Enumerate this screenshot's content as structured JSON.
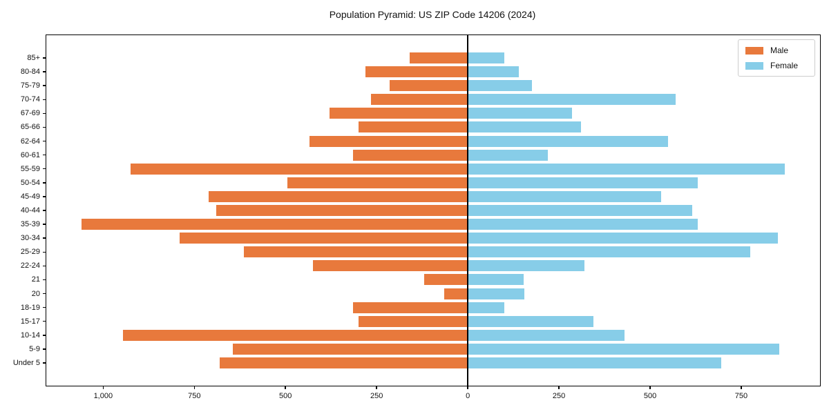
{
  "chart_data": {
    "type": "bar",
    "subtype": "population-pyramid",
    "title": "Population Pyramid: US ZIP Code 14206 (2024)",
    "categories_top_to_bottom": [
      "85+",
      "80-84",
      "75-79",
      "70-74",
      "67-69",
      "65-66",
      "62-64",
      "60-61",
      "55-59",
      "50-54",
      "45-49",
      "40-44",
      "35-39",
      "30-34",
      "25-29",
      "22-24",
      "21",
      "20",
      "18-19",
      "15-17",
      "10-14",
      "5-9",
      "Under 5"
    ],
    "series": [
      {
        "name": "Male",
        "side": "left",
        "color": "#E8793C",
        "values": [
          160,
          280,
          215,
          265,
          380,
          300,
          435,
          315,
          925,
          495,
          710,
          690,
          1060,
          790,
          615,
          425,
          120,
          65,
          315,
          300,
          945,
          645,
          680
        ]
      },
      {
        "name": "Female",
        "side": "right",
        "color": "#87CDE8",
        "values": [
          100,
          140,
          175,
          570,
          285,
          310,
          550,
          220,
          870,
          630,
          530,
          615,
          630,
          850,
          775,
          320,
          153,
          155,
          100,
          345,
          430,
          855,
          695
        ]
      }
    ],
    "xlim": [
      -1156,
      966
    ],
    "xticks": [
      {
        "value": -1000,
        "label": "1,000"
      },
      {
        "value": -750,
        "label": "750"
      },
      {
        "value": -500,
        "label": "500"
      },
      {
        "value": -250,
        "label": "250"
      },
      {
        "value": 0,
        "label": "0"
      },
      {
        "value": 250,
        "label": "250"
      },
      {
        "value": 500,
        "label": "500"
      },
      {
        "value": 750,
        "label": "750"
      }
    ],
    "zero_line": true,
    "grid": false,
    "legend": {
      "position": "upper-right",
      "entries": [
        "Male",
        "Female"
      ]
    },
    "colors": {
      "male": "#E8793C",
      "female": "#87CDE8",
      "axis": "#000000",
      "text": "#111111",
      "background": "#ffffff"
    }
  }
}
